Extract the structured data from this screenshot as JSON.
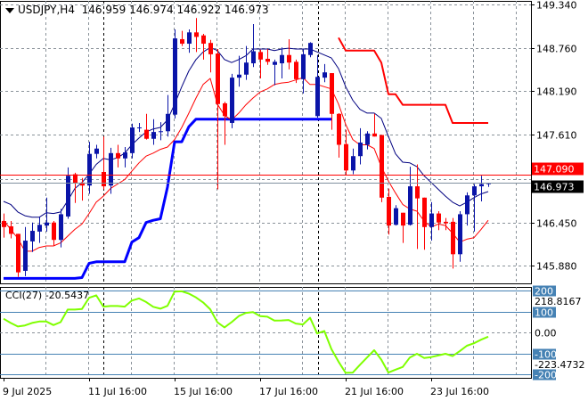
{
  "header": {
    "symbol": "USDJPY,H4",
    "open": "146.959",
    "high": "146.974",
    "low": "146.922",
    "close": "146.973"
  },
  "cci_label": {
    "name": "CCI(27)",
    "value": "-20.5437"
  },
  "colors": {
    "bull": "#0a14a8",
    "bear": "#ff0000",
    "ma_fast": "#000080",
    "ma_slow": "#ff0000",
    "support": "#0000ff",
    "resistance": "#ff0000",
    "cci": "#7fff00",
    "cci_levels": "#4682b4",
    "grid": "#8a929a"
  },
  "chart_data": [
    {
      "type": "candlestick",
      "symbol": "USDJPY",
      "timeframe": "H4",
      "ylim": [
        145.88,
        149.34
      ],
      "grid": true,
      "y_ticks": [
        "149.340",
        "148.760",
        "148.190",
        "147.610",
        "146.450",
        "145.880"
      ],
      "x_ticks": [
        {
          "index": 0,
          "label": "9 Jul 2025"
        },
        {
          "index": 12,
          "label": "11 Jul 16:00"
        },
        {
          "index": 24,
          "label": "15 Jul 16:00"
        },
        {
          "index": 36,
          "label": "17 Jul 16:00"
        },
        {
          "index": 48,
          "label": "21 Jul 16:00"
        },
        {
          "index": 60,
          "label": "23 Jul 16:00"
        }
      ],
      "candles_ohlc": [
        [
          146.47,
          146.57,
          146.25,
          146.39
        ],
        [
          146.4,
          146.47,
          146.24,
          146.3
        ],
        [
          146.3,
          146.3,
          145.73,
          145.79
        ],
        [
          145.81,
          146.39,
          145.74,
          146.21
        ],
        [
          146.2,
          146.45,
          146.06,
          146.34
        ],
        [
          146.33,
          146.52,
          146.18,
          146.42
        ],
        [
          146.41,
          146.78,
          146.33,
          146.45
        ],
        [
          146.45,
          146.47,
          146.14,
          146.22
        ],
        [
          146.22,
          146.63,
          146.12,
          146.56
        ],
        [
          146.53,
          147.18,
          146.5,
          147.07
        ],
        [
          147.09,
          147.11,
          146.71,
          146.97
        ],
        [
          146.98,
          147.04,
          146.74,
          146.94
        ],
        [
          146.94,
          147.52,
          146.83,
          147.36
        ],
        [
          147.36,
          147.48,
          147.3,
          147.43
        ],
        [
          147.12,
          147.59,
          146.89,
          146.93
        ],
        [
          146.94,
          147.44,
          146.83,
          147.37
        ],
        [
          147.37,
          147.48,
          147.18,
          147.3
        ],
        [
          147.3,
          147.45,
          147.18,
          147.38
        ],
        [
          147.37,
          147.76,
          147.3,
          147.71
        ],
        [
          147.7,
          147.77,
          147.65,
          147.71
        ],
        [
          147.68,
          147.89,
          147.55,
          147.56
        ],
        [
          147.56,
          147.82,
          147.48,
          147.65
        ],
        [
          147.65,
          147.78,
          147.54,
          147.66
        ],
        [
          147.66,
          148.14,
          147.59,
          147.89
        ],
        [
          147.88,
          149.01,
          147.83,
          148.89
        ],
        [
          148.88,
          148.99,
          148.79,
          148.82
        ],
        [
          148.82,
          149.01,
          148.7,
          148.97
        ],
        [
          148.97,
          149.16,
          148.71,
          148.91
        ],
        [
          148.93,
          148.95,
          148.61,
          148.82
        ],
        [
          148.83,
          148.87,
          148.44,
          148.68
        ],
        [
          148.69,
          148.75,
          146.89,
          148.02
        ],
        [
          148.03,
          148.05,
          147.48,
          147.86
        ],
        [
          147.77,
          148.42,
          147.7,
          148.37
        ],
        [
          148.37,
          148.66,
          148.25,
          148.41
        ],
        [
          148.41,
          148.79,
          148.34,
          148.57
        ],
        [
          148.56,
          149.08,
          148.51,
          148.72
        ],
        [
          148.71,
          148.74,
          148.36,
          148.61
        ],
        [
          148.62,
          148.75,
          148.54,
          148.58
        ],
        [
          148.54,
          148.61,
          148.27,
          148.58
        ],
        [
          148.56,
          148.77,
          148.36,
          148.67
        ],
        [
          148.67,
          148.88,
          148.48,
          148.57
        ],
        [
          148.58,
          148.61,
          148.3,
          148.35
        ],
        [
          148.35,
          148.75,
          148.16,
          148.68
        ],
        [
          148.67,
          148.84,
          148.64,
          148.83
        ],
        [
          147.86,
          148.67,
          147.84,
          148.38
        ],
        [
          148.37,
          148.55,
          148.31,
          148.44
        ],
        [
          148.43,
          148.43,
          147.68,
          147.89
        ],
        [
          147.89,
          147.9,
          147.31,
          147.48
        ],
        [
          147.49,
          147.68,
          147.08,
          147.14
        ],
        [
          147.14,
          147.43,
          147.09,
          147.33
        ],
        [
          147.33,
          147.7,
          147.22,
          147.51
        ],
        [
          147.48,
          147.66,
          147.42,
          147.63
        ],
        [
          147.63,
          147.89,
          147.59,
          147.59
        ],
        [
          147.61,
          147.61,
          146.72,
          146.78
        ],
        [
          146.79,
          146.9,
          146.29,
          146.41
        ],
        [
          146.42,
          146.68,
          146.41,
          146.64
        ],
        [
          146.58,
          146.58,
          146.18,
          146.41
        ],
        [
          146.42,
          147.19,
          146.41,
          146.93
        ],
        [
          146.93,
          147.22,
          146.1,
          146.77
        ],
        [
          146.78,
          146.78,
          146.09,
          146.39
        ],
        [
          146.39,
          146.72,
          146.21,
          146.57
        ],
        [
          146.57,
          146.6,
          146.35,
          146.45
        ],
        [
          146.46,
          146.51,
          146.35,
          146.44
        ],
        [
          146.46,
          146.51,
          145.84,
          146.03
        ],
        [
          146.03,
          146.6,
          145.93,
          146.56
        ],
        [
          146.56,
          146.85,
          146.41,
          146.81
        ],
        [
          146.81,
          146.96,
          146.33,
          146.93
        ],
        [
          146.93,
          147.07,
          146.73,
          146.96
        ],
        [
          146.959,
          146.974,
          146.922,
          146.973
        ]
      ],
      "ma_fast": [
        146.73,
        146.69,
        146.59,
        146.54,
        146.52,
        146.52,
        146.58,
        146.57,
        146.59,
        146.74,
        146.9,
        146.98,
        147.09,
        147.22,
        147.3,
        147.28,
        147.31,
        147.37,
        147.48,
        147.57,
        147.65,
        147.69,
        147.71,
        147.81,
        148.02,
        148.25,
        148.46,
        148.61,
        148.71,
        148.77,
        148.73,
        148.61,
        148.57,
        148.61,
        148.66,
        148.75,
        148.75,
        148.75,
        148.73,
        148.75,
        148.76,
        148.75,
        148.75,
        148.75,
        148.71,
        148.67,
        148.63,
        148.49,
        148.25,
        148.07,
        147.95,
        147.9,
        147.9,
        147.83,
        147.59,
        147.36,
        147.25,
        147.24,
        147.19,
        147.07,
        146.98,
        146.89,
        146.8,
        146.72,
        146.67,
        146.72,
        146.78,
        146.83,
        146.86
      ],
      "ma_slow": [
        146.48,
        146.36,
        146.24,
        146.07,
        146.07,
        146.12,
        146.14,
        146.14,
        146.18,
        146.27,
        146.36,
        146.43,
        146.57,
        146.72,
        146.8,
        146.9,
        146.96,
        147.02,
        147.13,
        147.24,
        147.33,
        147.37,
        147.42,
        147.45,
        147.55,
        147.71,
        147.9,
        148.1,
        148.28,
        148.36,
        148.02,
        147.87,
        147.81,
        147.9,
        148.01,
        148.1,
        148.18,
        148.22,
        148.28,
        148.3,
        148.31,
        148.34,
        148.37,
        148.28,
        148.28,
        148.25,
        148.22,
        148.02,
        147.75,
        147.55,
        147.48,
        147.48,
        147.43,
        147.19,
        147.0,
        146.84,
        146.69,
        146.63,
        146.6,
        146.47,
        146.39,
        146.43,
        146.41,
        146.31,
        146.19,
        146.23,
        146.25,
        146.36,
        146.48
      ],
      "support_line": [
        145.71,
        145.71,
        145.71,
        145.71,
        145.71,
        145.71,
        145.71,
        145.71,
        145.71,
        145.71,
        145.71,
        145.72,
        145.91,
        145.93,
        145.93,
        145.93,
        145.93,
        145.93,
        146.19,
        146.25,
        146.45,
        146.48,
        146.5,
        146.92,
        147.52,
        147.52,
        147.72,
        147.82,
        147.82,
        147.82,
        147.82,
        147.82,
        147.82,
        147.82,
        147.82,
        147.82,
        147.82,
        147.82,
        147.82,
        147.82,
        147.82,
        147.82,
        147.82,
        147.82,
        147.82,
        147.82,
        147.82,
        null,
        null,
        null,
        null,
        null,
        null,
        null,
        null,
        null,
        null,
        null,
        null,
        null,
        null,
        null,
        null,
        null,
        null,
        null,
        null,
        null,
        null
      ],
      "resistance_line": [
        null,
        null,
        null,
        null,
        null,
        null,
        null,
        null,
        null,
        null,
        null,
        null,
        null,
        null,
        null,
        null,
        null,
        null,
        null,
        null,
        null,
        null,
        null,
        null,
        null,
        null,
        null,
        null,
        null,
        null,
        null,
        null,
        null,
        null,
        null,
        null,
        null,
        null,
        null,
        null,
        null,
        null,
        null,
        null,
        null,
        null,
        null,
        148.9,
        148.73,
        148.73,
        148.73,
        148.73,
        148.73,
        148.57,
        148.15,
        148.15,
        148.01,
        148.01,
        148.01,
        148.01,
        148.01,
        148.01,
        148.01,
        147.77,
        147.77,
        147.77,
        147.77,
        147.77,
        147.77
      ],
      "hlines": [
        {
          "value": 147.09,
          "label": "147.090",
          "color": "#ff0000"
        },
        {
          "value": 146.973,
          "label": "146.973",
          "color": "#000000"
        }
      ]
    },
    {
      "type": "line",
      "indicator": "CCI(27)",
      "ylim": [
        -223.4732,
        218.8167
      ],
      "levels": [
        {
          "value": 200,
          "label": "200",
          "boxed": true
        },
        {
          "value": 100,
          "label": "100",
          "boxed": true
        },
        {
          "value": 0,
          "label": "0.00",
          "boxed": false
        },
        {
          "value": -100,
          "label": "-100",
          "boxed": true
        },
        {
          "value": -200,
          "label": "-200",
          "boxed": true
        }
      ],
      "max_label": "218.8167",
      "min_label": "-223.4732",
      "values": [
        65,
        45,
        28,
        33,
        45,
        52,
        52,
        35,
        49,
        109,
        109,
        112,
        165,
        177,
        123,
        126,
        126,
        123,
        152,
        162,
        145,
        122,
        113,
        127,
        195,
        196,
        185,
        167,
        143,
        110,
        48,
        24,
        49,
        78,
        93,
        97,
        78,
        75,
        56,
        57,
        59,
        42,
        38,
        70,
        -5,
        7,
        -80,
        -140,
        -193,
        -192,
        -155,
        -120,
        -85,
        -130,
        -192,
        -178,
        -165,
        -120,
        -102,
        -122,
        -118,
        -110,
        -102,
        -113,
        -90,
        -64,
        -52,
        -35,
        -20.5437
      ]
    }
  ]
}
